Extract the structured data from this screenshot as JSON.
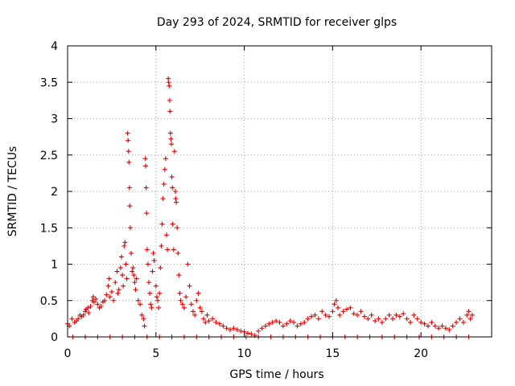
{
  "chart_data": {
    "type": "scatter",
    "title": "Day 293 of 2024, SRMTID for receiver glps",
    "xlabel": "GPS time / hours",
    "ylabel": "SRMTID / TECUs",
    "xlim": [
      0,
      24
    ],
    "ylim": [
      0,
      4
    ],
    "xticks": [
      "0",
      "5",
      "10",
      "15",
      "20"
    ],
    "yticks": [
      "0",
      "0.5",
      "1",
      "1.5",
      "2",
      "2.5",
      "3",
      "3.5",
      "4"
    ],
    "marker": "+",
    "color": "#dd0000",
    "grid": true,
    "series": [
      {
        "name": "SRMTID",
        "points": [
          [
            0.0,
            0.18
          ],
          [
            0.1,
            0.15
          ],
          [
            0.25,
            0.25
          ],
          [
            0.4,
            0.2
          ],
          [
            0.5,
            0.22
          ],
          [
            0.6,
            0.25
          ],
          [
            0.7,
            0.3
          ],
          [
            0.8,
            0.28
          ],
          [
            0.9,
            0.3
          ],
          [
            1.0,
            0.35
          ],
          [
            1.05,
            0.38
          ],
          [
            1.15,
            0.4
          ],
          [
            1.2,
            0.33
          ],
          [
            1.3,
            0.42
          ],
          [
            1.4,
            0.5
          ],
          [
            1.45,
            0.55
          ],
          [
            1.5,
            0.48
          ],
          [
            1.6,
            0.52
          ],
          [
            1.7,
            0.45
          ],
          [
            1.8,
            0.4
          ],
          [
            1.9,
            0.42
          ],
          [
            2.0,
            0.48
          ],
          [
            2.1,
            0.5
          ],
          [
            2.2,
            0.58
          ],
          [
            2.3,
            0.7
          ],
          [
            2.35,
            0.8
          ],
          [
            2.4,
            0.55
          ],
          [
            2.5,
            0.62
          ],
          [
            2.6,
            0.5
          ],
          [
            2.7,
            0.75
          ],
          [
            2.8,
            0.9
          ],
          [
            2.85,
            0.6
          ],
          [
            2.9,
            0.65
          ],
          [
            3.0,
            0.95
          ],
          [
            3.05,
            1.1
          ],
          [
            3.1,
            0.85
          ],
          [
            3.15,
            0.7
          ],
          [
            3.2,
            1.25
          ],
          [
            3.25,
            1.3
          ],
          [
            3.3,
            1.0
          ],
          [
            3.35,
            0.8
          ],
          [
            3.4,
            2.8
          ],
          [
            3.42,
            2.7
          ],
          [
            3.45,
            2.55
          ],
          [
            3.47,
            2.4
          ],
          [
            3.5,
            2.05
          ],
          [
            3.52,
            1.8
          ],
          [
            3.55,
            1.5
          ],
          [
            3.6,
            1.15
          ],
          [
            3.65,
            0.9
          ],
          [
            3.7,
            0.95
          ],
          [
            3.75,
            0.85
          ],
          [
            3.8,
            0.75
          ],
          [
            3.85,
            0.65
          ],
          [
            3.9,
            0.8
          ],
          [
            4.0,
            0.5
          ],
          [
            4.1,
            0.45
          ],
          [
            4.2,
            0.3
          ],
          [
            4.3,
            0.25
          ],
          [
            4.35,
            0.15
          ],
          [
            4.4,
            2.45
          ],
          [
            4.42,
            2.35
          ],
          [
            4.45,
            2.05
          ],
          [
            4.47,
            1.7
          ],
          [
            4.5,
            1.2
          ],
          [
            4.55,
            1.0
          ],
          [
            4.6,
            0.75
          ],
          [
            4.65,
            0.6
          ],
          [
            4.7,
            0.45
          ],
          [
            4.75,
            0.4
          ],
          [
            4.8,
            0.9
          ],
          [
            4.85,
            1.15
          ],
          [
            4.9,
            1.05
          ],
          [
            5.0,
            0.7
          ],
          [
            5.05,
            0.55
          ],
          [
            5.1,
            0.5
          ],
          [
            5.15,
            0.4
          ],
          [
            5.2,
            0.6
          ],
          [
            5.25,
            0.95
          ],
          [
            5.3,
            1.25
          ],
          [
            5.35,
            1.55
          ],
          [
            5.4,
            1.9
          ],
          [
            5.45,
            2.1
          ],
          [
            5.5,
            2.3
          ],
          [
            5.55,
            2.45
          ],
          [
            5.6,
            1.4
          ],
          [
            5.65,
            1.2
          ],
          [
            5.7,
            3.55
          ],
          [
            5.72,
            3.5
          ],
          [
            5.75,
            3.45
          ],
          [
            5.78,
            3.25
          ],
          [
            5.8,
            3.1
          ],
          [
            5.82,
            2.8
          ],
          [
            5.85,
            2.72
          ],
          [
            5.88,
            2.65
          ],
          [
            5.9,
            2.2
          ],
          [
            5.93,
            2.05
          ],
          [
            5.95,
            1.55
          ],
          [
            6.0,
            1.2
          ],
          [
            6.05,
            2.55
          ],
          [
            6.1,
            2.0
          ],
          [
            6.12,
            1.9
          ],
          [
            6.15,
            1.85
          ],
          [
            6.2,
            1.5
          ],
          [
            6.25,
            1.15
          ],
          [
            6.3,
            0.85
          ],
          [
            6.35,
            0.6
          ],
          [
            6.4,
            0.5
          ],
          [
            6.5,
            0.45
          ],
          [
            6.6,
            0.4
          ],
          [
            6.7,
            0.55
          ],
          [
            6.8,
            1.0
          ],
          [
            6.9,
            0.7
          ],
          [
            7.0,
            0.45
          ],
          [
            7.1,
            0.35
          ],
          [
            7.2,
            0.3
          ],
          [
            7.3,
            0.5
          ],
          [
            7.4,
            0.6
          ],
          [
            7.5,
            0.4
          ],
          [
            7.6,
            0.35
          ],
          [
            7.7,
            0.25
          ],
          [
            7.8,
            0.2
          ],
          [
            7.9,
            0.3
          ],
          [
            8.0,
            0.22
          ],
          [
            8.2,
            0.25
          ],
          [
            8.4,
            0.2
          ],
          [
            8.6,
            0.18
          ],
          [
            8.8,
            0.15
          ],
          [
            9.0,
            0.12
          ],
          [
            9.2,
            0.1
          ],
          [
            9.4,
            0.12
          ],
          [
            9.6,
            0.1
          ],
          [
            9.8,
            0.08
          ],
          [
            10.0,
            0.07
          ],
          [
            10.2,
            0.05
          ],
          [
            10.4,
            0.04
          ],
          [
            10.6,
            0.02
          ],
          [
            10.8,
            0.08
          ],
          [
            11.0,
            0.12
          ],
          [
            11.2,
            0.15
          ],
          [
            11.4,
            0.18
          ],
          [
            11.6,
            0.2
          ],
          [
            11.8,
            0.22
          ],
          [
            12.0,
            0.2
          ],
          [
            12.2,
            0.15
          ],
          [
            12.4,
            0.18
          ],
          [
            12.6,
            0.22
          ],
          [
            12.8,
            0.2
          ],
          [
            13.0,
            0.15
          ],
          [
            13.2,
            0.18
          ],
          [
            13.4,
            0.2
          ],
          [
            13.6,
            0.25
          ],
          [
            13.8,
            0.28
          ],
          [
            14.0,
            0.3
          ],
          [
            14.2,
            0.25
          ],
          [
            14.4,
            0.35
          ],
          [
            14.6,
            0.3
          ],
          [
            14.8,
            0.28
          ],
          [
            15.0,
            0.35
          ],
          [
            15.1,
            0.45
          ],
          [
            15.2,
            0.5
          ],
          [
            15.3,
            0.4
          ],
          [
            15.4,
            0.3
          ],
          [
            15.6,
            0.35
          ],
          [
            15.8,
            0.38
          ],
          [
            16.0,
            0.4
          ],
          [
            16.2,
            0.32
          ],
          [
            16.4,
            0.3
          ],
          [
            16.6,
            0.35
          ],
          [
            16.8,
            0.28
          ],
          [
            17.0,
            0.25
          ],
          [
            17.2,
            0.3
          ],
          [
            17.4,
            0.22
          ],
          [
            17.6,
            0.25
          ],
          [
            17.8,
            0.2
          ],
          [
            18.0,
            0.25
          ],
          [
            18.2,
            0.3
          ],
          [
            18.4,
            0.25
          ],
          [
            18.6,
            0.3
          ],
          [
            18.8,
            0.28
          ],
          [
            19.0,
            0.32
          ],
          [
            19.2,
            0.25
          ],
          [
            19.4,
            0.2
          ],
          [
            19.6,
            0.3
          ],
          [
            19.8,
            0.25
          ],
          [
            20.0,
            0.2
          ],
          [
            20.2,
            0.18
          ],
          [
            20.4,
            0.15
          ],
          [
            20.6,
            0.2
          ],
          [
            20.8,
            0.15
          ],
          [
            21.0,
            0.12
          ],
          [
            21.2,
            0.15
          ],
          [
            21.4,
            0.12
          ],
          [
            21.6,
            0.1
          ],
          [
            21.8,
            0.15
          ],
          [
            22.0,
            0.2
          ],
          [
            22.2,
            0.25
          ],
          [
            22.4,
            0.2
          ],
          [
            22.6,
            0.3
          ],
          [
            22.7,
            0.35
          ],
          [
            22.8,
            0.25
          ],
          [
            22.9,
            0.3
          ],
          [
            0.3,
            0.0
          ],
          [
            1.0,
            0.0
          ],
          [
            1.7,
            0.0
          ],
          [
            2.4,
            0.0
          ],
          [
            3.1,
            0.0
          ],
          [
            3.8,
            0.0
          ],
          [
            4.5,
            0.0
          ],
          [
            5.2,
            0.0
          ],
          [
            5.9,
            0.0
          ],
          [
            6.6,
            0.0
          ],
          [
            7.3,
            0.0
          ],
          [
            8.0,
            0.0
          ],
          [
            8.7,
            0.0
          ],
          [
            9.4,
            0.0
          ],
          [
            10.1,
            0.0
          ],
          [
            10.8,
            0.0
          ],
          [
            11.5,
            0.0
          ],
          [
            12.2,
            0.0
          ],
          [
            12.9,
            0.0
          ],
          [
            13.6,
            0.0
          ],
          [
            14.3,
            0.0
          ],
          [
            15.0,
            0.0
          ],
          [
            15.7,
            0.0
          ],
          [
            16.4,
            0.0
          ],
          [
            17.1,
            0.0
          ],
          [
            17.8,
            0.0
          ],
          [
            18.5,
            0.0
          ],
          [
            19.2,
            0.0
          ],
          [
            19.9,
            0.0
          ],
          [
            20.6,
            0.0
          ],
          [
            21.3,
            0.0
          ],
          [
            22.0,
            0.0
          ],
          [
            22.7,
            0.0
          ]
        ]
      }
    ]
  }
}
